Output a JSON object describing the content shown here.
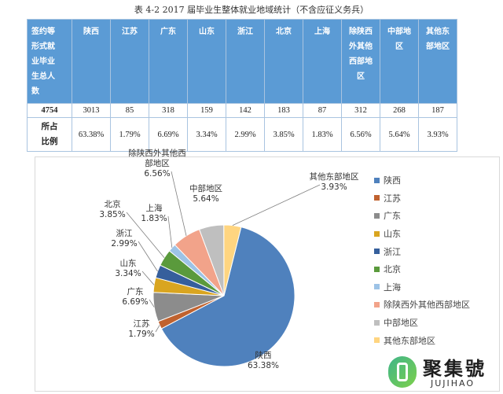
{
  "caption": "表 4-2      2017 届毕业生整体就业地域统计（不含应征义务兵）",
  "table": {
    "header": [
      "签约等形式就业毕业生总人数",
      "陕西",
      "江苏",
      "广东",
      "山东",
      "浙江",
      "北京",
      "上海",
      "除陕西外其他西部地区",
      "中部地区",
      "其他东部地区"
    ],
    "header_lines": [
      [
        "签约等",
        "形式就",
        "业毕业",
        "生总人",
        "数"
      ],
      [
        "陕西"
      ],
      [
        "江苏"
      ],
      [
        "广东"
      ],
      [
        "山东"
      ],
      [
        "浙江"
      ],
      [
        "北京"
      ],
      [
        "上海"
      ],
      [
        "除陕西",
        "外其他",
        "西部地",
        "区"
      ],
      [
        "中部地",
        "区"
      ],
      [
        "其他东",
        "部地区"
      ]
    ],
    "totals": [
      "4754",
      "3013",
      "85",
      "318",
      "159",
      "142",
      "183",
      "87",
      "312",
      "268",
      "187"
    ],
    "pct_label_lines": [
      "所占",
      "比例"
    ],
    "percents": [
      "63.38%",
      "1.79%",
      "6.69%",
      "3.34%",
      "2.99%",
      "3.85%",
      "1.83%",
      "6.56%",
      "5.64%",
      "3.93%"
    ]
  },
  "chart_data": {
    "type": "pie",
    "categories": [
      "陕西",
      "江苏",
      "广东",
      "山东",
      "浙江",
      "北京",
      "上海",
      "除陕西外其他西部地区",
      "中部地区",
      "其他东部地区"
    ],
    "values": [
      63.38,
      1.79,
      6.69,
      3.34,
      2.99,
      3.85,
      1.83,
      6.56,
      5.64,
      3.93
    ],
    "value_labels": [
      "63.38%",
      "1.79%",
      "6.69%",
      "3.34%",
      "2.99%",
      "3.85%",
      "1.83%",
      "6.56%",
      "5.64%",
      "3.93%"
    ],
    "slice_labels": [
      [
        "陕西"
      ],
      [
        "江苏"
      ],
      [
        "广东"
      ],
      [
        "山东"
      ],
      [
        "浙江"
      ],
      [
        "北京"
      ],
      [
        "上海"
      ],
      [
        "除陕西外其他西",
        "部地区"
      ],
      [
        "中部地区"
      ],
      [
        "其他东部地区"
      ]
    ],
    "colors": [
      "#4f81bd",
      "#c0622f",
      "#8c8c8c",
      "#d9a520",
      "#365f9c",
      "#5a9a3c",
      "#9dc3e6",
      "#f2a38a",
      "#bfbfbf",
      "#ffd580"
    ],
    "legend_position": "right"
  },
  "logo": {
    "cn": "聚集號",
    "en": "JUJIHAO"
  }
}
